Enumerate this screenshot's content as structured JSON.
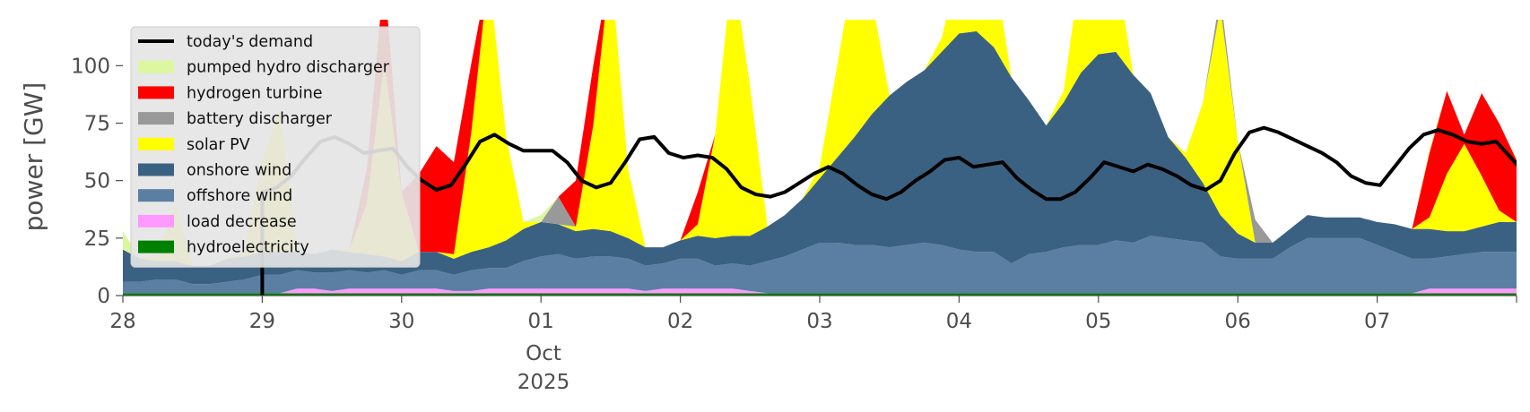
{
  "chart_data": {
    "type": "area",
    "title": "",
    "xlabel": "",
    "ylabel": "power [GW]",
    "ylim": [
      0,
      120
    ],
    "y_ticks": [
      0,
      25,
      50,
      75,
      100
    ],
    "x_range": [
      "2025-09-28T00:00",
      "2025-10-08T00:00"
    ],
    "x_ticks": [
      "28",
      "29",
      "30",
      "01",
      "02",
      "03",
      "04",
      "05",
      "06",
      "07"
    ],
    "x_month_label": "Oct",
    "x_year_label": "2025",
    "grid": false,
    "legend_position": "top-left",
    "x_hours": [
      0,
      3,
      6,
      9,
      12,
      15,
      18,
      21,
      24,
      27,
      30,
      33,
      36,
      39,
      42,
      45,
      48,
      51,
      54,
      57,
      60,
      63,
      66,
      69,
      72,
      75,
      78,
      81,
      84,
      87,
      90,
      93,
      96,
      99,
      102,
      105,
      108,
      111,
      114,
      117,
      120,
      123,
      126,
      129,
      132,
      135,
      138,
      141,
      144,
      147,
      150,
      153,
      156,
      159,
      162,
      165,
      168,
      171,
      174,
      177,
      180,
      183,
      186,
      189,
      192,
      195,
      198,
      201,
      204,
      207,
      210,
      213,
      216,
      219,
      222,
      225,
      228,
      231,
      234,
      237,
      240
    ],
    "series": [
      {
        "name": "hydroelectricity",
        "color": "#008000",
        "values": [
          1,
          1,
          1,
          1,
          1,
          1,
          1,
          1,
          1,
          1,
          1,
          1,
          1,
          1,
          1,
          1,
          1,
          1,
          1,
          1,
          1,
          1,
          1,
          1,
          1,
          1,
          1,
          1,
          1,
          1,
          1,
          1,
          1,
          1,
          1,
          1,
          1,
          1,
          1,
          1,
          1,
          1,
          1,
          1,
          1,
          1,
          1,
          1,
          1,
          1,
          1,
          1,
          1,
          1,
          1,
          1,
          1,
          1,
          1,
          1,
          1,
          1,
          1,
          1,
          1,
          1,
          1,
          1,
          1,
          1,
          1,
          1,
          1,
          1,
          1,
          1,
          1,
          1,
          1,
          1,
          1
        ]
      },
      {
        "name": "load decrease",
        "color": "#ff99ff",
        "values": [
          0,
          0,
          0,
          0,
          0,
          0,
          0,
          0,
          0,
          0,
          2,
          2,
          1,
          2,
          2,
          2,
          2,
          2,
          2,
          1,
          1,
          2,
          2,
          2,
          2,
          2,
          2,
          2,
          2,
          2,
          1,
          2,
          2,
          2,
          2,
          2,
          1,
          0,
          0,
          0,
          0,
          0,
          0,
          0,
          0,
          0,
          0,
          0,
          0,
          0,
          0,
          0,
          0,
          0,
          0,
          0,
          0,
          0,
          0,
          0,
          0,
          0,
          0,
          0,
          0,
          0,
          0,
          0,
          0,
          0,
          0,
          0,
          0,
          0,
          0,
          2,
          2,
          2,
          2,
          2,
          2
        ]
      },
      {
        "name": "offshore wind",
        "color": "#5b7fa3",
        "values": [
          5,
          5,
          6,
          6,
          4,
          4,
          5,
          6,
          8,
          8,
          8,
          7,
          8,
          8,
          7,
          8,
          6,
          8,
          8,
          7,
          9,
          9,
          9,
          12,
          14,
          15,
          13,
          14,
          14,
          13,
          11,
          11,
          13,
          13,
          10,
          11,
          11,
          14,
          16,
          19,
          22,
          22,
          21,
          21,
          20,
          21,
          22,
          21,
          19,
          18,
          18,
          13,
          17,
          18,
          20,
          21,
          21,
          23,
          22,
          25,
          24,
          23,
          22,
          16,
          15,
          15,
          15,
          20,
          24,
          24,
          24,
          24,
          21,
          18,
          15,
          13,
          14,
          15,
          16,
          16,
          16
        ]
      },
      {
        "name": "onshore wind",
        "color": "#3b6182",
        "values": [
          14,
          10,
          8,
          8,
          8,
          8,
          10,
          10,
          10,
          10,
          8,
          8,
          10,
          8,
          8,
          6,
          6,
          8,
          8,
          7,
          8,
          9,
          12,
          14,
          15,
          13,
          12,
          12,
          11,
          9,
          8,
          7,
          8,
          10,
          12,
          12,
          13,
          15,
          18,
          22,
          28,
          37,
          47,
          57,
          66,
          71,
          75,
          84,
          94,
          96,
          89,
          81,
          67,
          55,
          63,
          75,
          83,
          82,
          73,
          62,
          44,
          36,
          26,
          18,
          11,
          7,
          7,
          8,
          10,
          9,
          9,
          9,
          10,
          12,
          13,
          13,
          11,
          10,
          11,
          13,
          13
        ]
      },
      {
        "name": "solar PV",
        "color": "#ffff00",
        "values": [
          0,
          0,
          2,
          25,
          0,
          0,
          0,
          2,
          40,
          62,
          0,
          0,
          0,
          1,
          22,
          85,
          30,
          0,
          0,
          2,
          52,
          120,
          45,
          3,
          0,
          0,
          2,
          45,
          120,
          30,
          0,
          0,
          0,
          5,
          45,
          120,
          65,
          0,
          0,
          0,
          5,
          40,
          100,
          50,
          0,
          0,
          0,
          6,
          60,
          120,
          55,
          0,
          0,
          0,
          5,
          50,
          120,
          50,
          0,
          0,
          0,
          2,
          35,
          90,
          40,
          0,
          0,
          0,
          0,
          0,
          0,
          0,
          0,
          0,
          0,
          5,
          25,
          38,
          22,
          5,
          0
        ]
      },
      {
        "name": "battery discharger",
        "color": "#999999",
        "values": [
          0,
          0,
          0,
          0,
          0,
          0,
          0,
          0,
          0,
          0,
          0,
          0,
          0,
          0,
          0,
          0,
          0,
          0,
          0,
          0,
          0,
          0,
          0,
          0,
          0,
          12,
          0,
          0,
          0,
          0,
          0,
          0,
          0,
          0,
          0,
          10,
          0,
          0,
          0,
          0,
          0,
          0,
          0,
          0,
          0,
          0,
          0,
          0,
          0,
          10,
          0,
          0,
          0,
          0,
          0,
          0,
          0,
          0,
          0,
          0,
          0,
          0,
          0,
          6,
          0,
          10,
          0,
          0,
          0,
          0,
          0,
          0,
          0,
          0,
          0,
          0,
          0,
          0,
          0,
          0,
          0
        ]
      },
      {
        "name": "hydrogen turbine",
        "color": "#ff0000",
        "values": [
          0,
          0,
          0,
          0,
          0,
          0,
          0,
          0,
          0,
          0,
          0,
          0,
          0,
          0,
          15,
          38,
          0,
          34,
          46,
          40,
          30,
          0,
          0,
          0,
          0,
          0,
          20,
          26,
          25,
          0,
          0,
          0,
          0,
          14,
          0,
          0,
          0,
          0,
          0,
          0,
          0,
          0,
          0,
          0,
          0,
          0,
          0,
          0,
          0,
          0,
          0,
          0,
          0,
          0,
          0,
          0,
          0,
          0,
          0,
          0,
          0,
          0,
          0,
          0,
          0,
          0,
          0,
          0,
          0,
          0,
          0,
          0,
          0,
          0,
          0,
          28,
          36,
          4,
          36,
          38,
          27
        ]
      },
      {
        "name": "pumped hydro discharger",
        "color": "#ddf7a0",
        "values": [
          8,
          0,
          2,
          0,
          0,
          0,
          0,
          0,
          0,
          0,
          0,
          0,
          0,
          0,
          0,
          0,
          0,
          0,
          0,
          0,
          0,
          0,
          0,
          0,
          3,
          0,
          0,
          0,
          0,
          0,
          0,
          0,
          0,
          0,
          0,
          0,
          0,
          0,
          0,
          0,
          0,
          0,
          0,
          0,
          0,
          0,
          0,
          0,
          0,
          0,
          0,
          0,
          0,
          0,
          0,
          0,
          0,
          0,
          0,
          0,
          0,
          0,
          0,
          0,
          0,
          0,
          0,
          0,
          0,
          0,
          0,
          0,
          0,
          0,
          0,
          2,
          0,
          0,
          0,
          0,
          0
        ]
      }
    ],
    "demand": {
      "name": "today's demand",
      "color": "#000000",
      "start_hour": 24,
      "values": [
        45,
        47,
        52,
        60,
        67,
        69,
        66,
        62,
        63,
        64,
        56,
        50,
        46,
        48,
        57,
        67,
        70,
        66,
        63,
        63,
        63,
        58,
        50,
        47,
        49,
        58,
        68,
        69,
        62,
        60,
        61,
        60,
        55,
        47,
        44,
        43,
        45,
        49,
        53,
        56,
        53,
        48,
        44,
        42,
        45,
        50,
        54,
        59,
        60,
        56,
        57,
        58,
        51,
        46,
        42,
        42,
        45,
        51,
        58,
        56,
        54,
        57,
        55,
        52,
        48,
        46,
        50,
        62,
        71,
        73,
        71,
        68,
        65,
        62,
        58,
        52,
        49,
        48,
        56,
        64,
        70,
        72,
        70,
        67,
        66,
        67,
        60,
        53
      ]
    }
  }
}
